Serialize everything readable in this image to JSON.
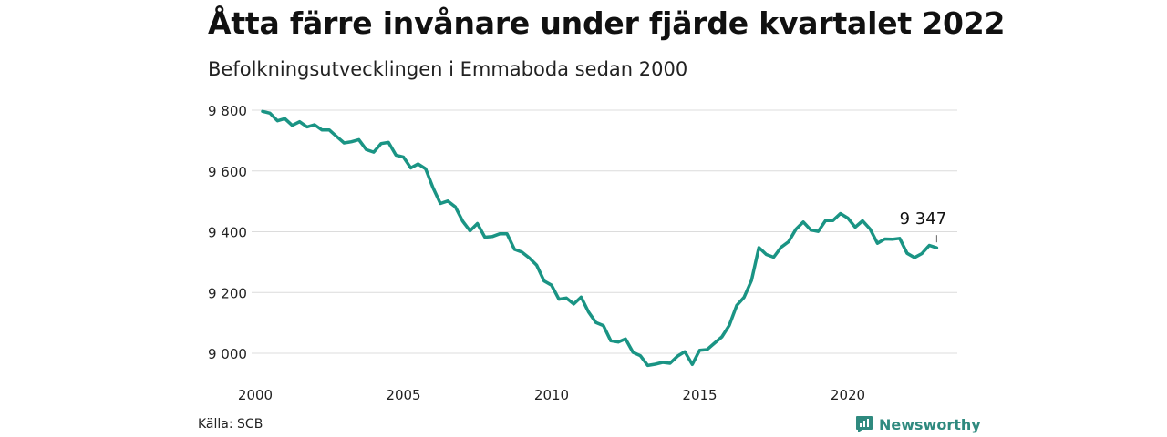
{
  "chart_data": {
    "type": "line",
    "title": "Åtta färre invånare under fjärde kvartalet 2022",
    "subtitle": "Befolkningsutvecklingen i Emmaboda sedan 2000",
    "xlabel": "",
    "ylabel": "",
    "x_ticks": [
      "2000",
      "2005",
      "2010",
      "2015",
      "2020"
    ],
    "y_ticks": [
      "9 000",
      "9 200",
      "9 400",
      "9 600",
      "9 800"
    ],
    "y_tick_values": [
      9000,
      9200,
      9400,
      9600,
      9800
    ],
    "ylim": [
      8950,
      9820
    ],
    "xlim": [
      2000.0,
      2023.0
    ],
    "grid": true,
    "color": "#1a9484",
    "end_label": "9 347",
    "series": [
      {
        "x": [
          2000.0,
          2000.25,
          2000.5,
          2000.75,
          2001.0,
          2001.25,
          2001.5,
          2001.75,
          2002.0,
          2002.25,
          2002.5,
          2002.75,
          2003.0,
          2003.25,
          2003.5,
          2003.75,
          2004.0,
          2004.25,
          2004.5,
          2004.75,
          2005.0,
          2005.25,
          2005.5,
          2005.75,
          2006.0,
          2006.25,
          2006.5,
          2006.75,
          2007.0,
          2007.25,
          2007.5,
          2007.75,
          2008.0,
          2008.25,
          2008.5,
          2008.75,
          2009.0,
          2009.25,
          2009.5,
          2009.75,
          2010.0,
          2010.25,
          2010.5,
          2010.75,
          2011.0,
          2011.25,
          2011.5,
          2011.75,
          2012.0,
          2012.25,
          2012.5,
          2012.75,
          2013.0,
          2013.25,
          2013.5,
          2013.75,
          2014.0,
          2014.25,
          2014.5,
          2014.75,
          2015.0,
          2015.25,
          2015.5,
          2015.75,
          2016.0,
          2016.25,
          2016.5,
          2016.75,
          2017.0,
          2017.25,
          2017.5,
          2017.75,
          2018.0,
          2018.25,
          2018.5,
          2018.75,
          2019.0,
          2019.25,
          2019.5,
          2019.75,
          2020.0,
          2020.25,
          2020.5,
          2020.75,
          2021.0,
          2021.25,
          2021.5,
          2021.75,
          2022.0,
          2022.25,
          2022.5,
          2022.75
        ],
        "values": [
          9796,
          9790,
          9765,
          9772,
          9750,
          9762,
          9745,
          9752,
          9735,
          9735,
          9713,
          9692,
          9696,
          9703,
          9670,
          9662,
          9690,
          9694,
          9652,
          9646,
          9610,
          9623,
          9607,
          9545,
          9493,
          9501,
          9482,
          9435,
          9403,
          9427,
          9382,
          9384,
          9393,
          9393,
          9342,
          9333,
          9314,
          9290,
          9238,
          9224,
          9178,
          9182,
          9162,
          9185,
          9136,
          9101,
          9091,
          9041,
          9037,
          9047,
          9003,
          8992,
          8960,
          8964,
          8970,
          8967,
          8990,
          9005,
          8963,
          9010,
          9012,
          9033,
          9054,
          9092,
          9157,
          9184,
          9240,
          9348,
          9325,
          9316,
          9349,
          9367,
          9408,
          9432,
          9406,
          9401,
          9437,
          9437,
          9460,
          9445,
          9415,
          9436,
          9409,
          9362,
          9376,
          9375,
          9378,
          9329,
          9315,
          9328,
          9355,
          9347
        ]
      }
    ]
  },
  "footer": {
    "source": "Källa: SCB",
    "brand": "Newsworthy"
  }
}
